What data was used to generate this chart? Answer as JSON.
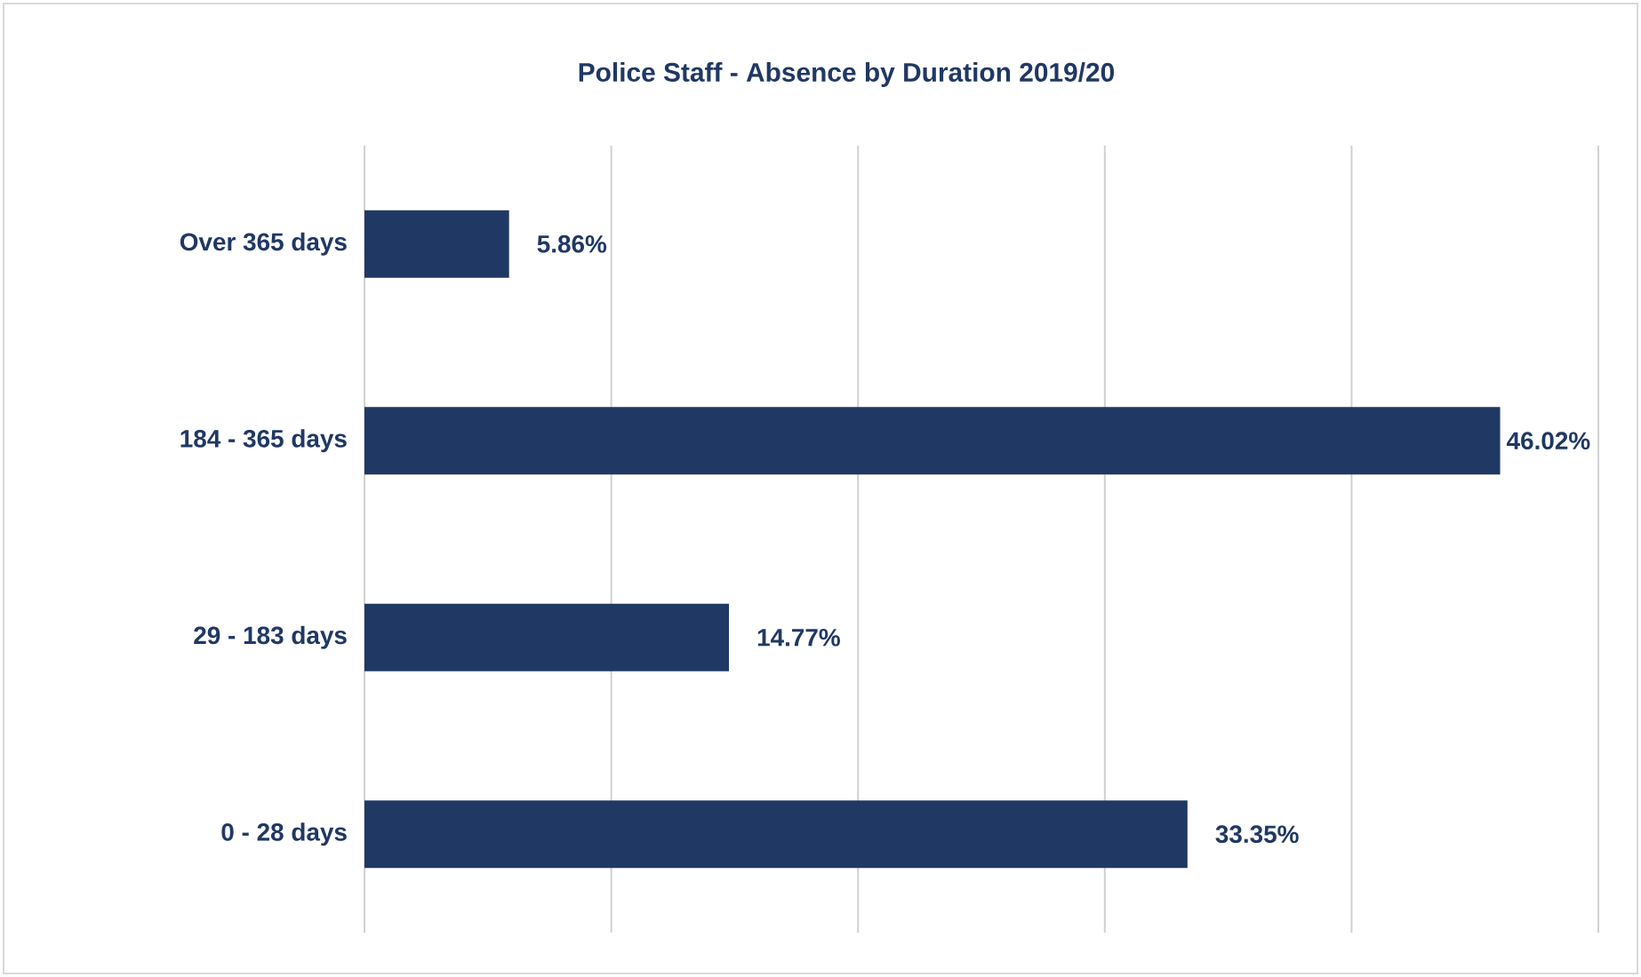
{
  "chart_data": {
    "type": "bar",
    "orientation": "horizontal",
    "title": "Police Staff - Absence by Duration 2019/20",
    "categories": [
      "Over 365 days",
      "184 - 365 days",
      "29 - 183 days",
      "0 - 28 days"
    ],
    "values": [
      5.86,
      46.02,
      14.77,
      33.35
    ],
    "value_labels": [
      "5.86%",
      "46.02%",
      "14.77%",
      "33.35%"
    ],
    "color": "#203864",
    "xlim": [
      0,
      50
    ],
    "xticks": [
      {
        "value": 0,
        "label": null
      },
      {
        "value": 10,
        "label": null
      },
      {
        "value": 20,
        "label": null
      },
      {
        "value": 30,
        "label": null
      },
      {
        "value": 40,
        "label": null
      },
      {
        "value": 50,
        "label": null
      }
    ],
    "grid": "x",
    "tick_labels": "y"
  }
}
